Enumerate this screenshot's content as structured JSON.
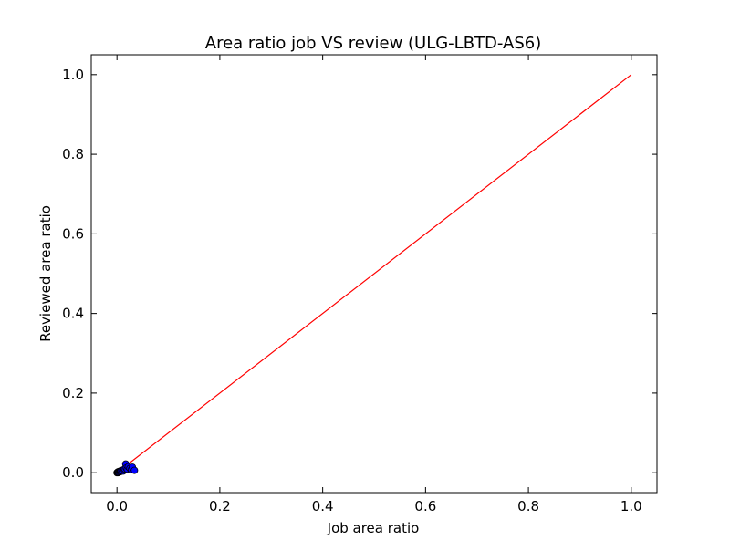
{
  "chart_data": {
    "type": "scatter",
    "title": "Area ratio job VS review (ULG-LBTD-AS6)",
    "xlabel": "Job area ratio",
    "ylabel": "Reviewed area ratio",
    "xlim": [
      -0.05,
      1.05
    ],
    "ylim": [
      -0.05,
      1.05
    ],
    "xticks": [
      0.0,
      0.2,
      0.4,
      0.6,
      0.8,
      1.0
    ],
    "yticks": [
      0.0,
      0.2,
      0.4,
      0.6,
      0.8,
      1.0
    ],
    "xtick_labels": [
      "0.0",
      "0.2",
      "0.4",
      "0.6",
      "0.8",
      "1.0"
    ],
    "ytick_labels": [
      "0.0",
      "0.2",
      "0.4",
      "0.6",
      "0.8",
      "1.0"
    ],
    "grid": false,
    "reference_line": {
      "x": [
        0,
        1
      ],
      "y": [
        0,
        1
      ],
      "color": "#ff0000"
    },
    "point_color": "#0000ff",
    "points": {
      "x": [
        0.0,
        0.001,
        0.002,
        0.002,
        0.003,
        0.004,
        0.005,
        0.006,
        0.007,
        0.008,
        0.01,
        0.012,
        0.014,
        0.015,
        0.017,
        0.018,
        0.02,
        0.022,
        0.025,
        0.028,
        0.03,
        0.034
      ],
      "y": [
        0.0,
        0.001,
        0.0,
        0.002,
        0.001,
        0.003,
        0.002,
        0.004,
        0.003,
        0.005,
        0.006,
        0.004,
        0.008,
        0.01,
        0.022,
        0.012,
        0.009,
        0.015,
        0.011,
        0.008,
        0.014,
        0.006
      ]
    }
  }
}
